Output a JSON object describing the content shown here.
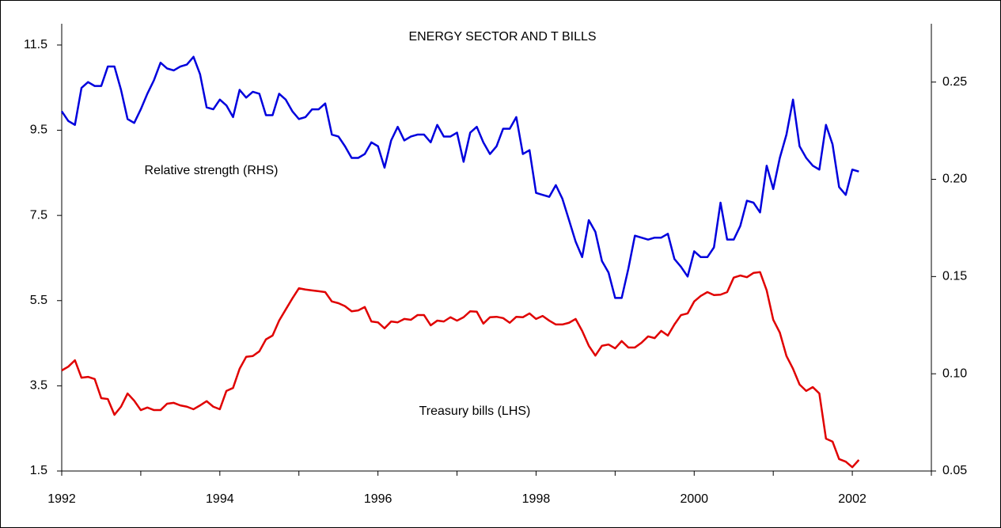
{
  "chart_data": {
    "type": "line",
    "title": "ENERGY SECTOR AND T BILLS",
    "x": [
      1992,
      1992.083,
      1992.167,
      1992.25,
      1992.333,
      1992.417,
      1992.5,
      1992.583,
      1992.667,
      1992.75,
      1992.833,
      1992.917,
      1993,
      1993.083,
      1993.167,
      1993.25,
      1993.333,
      1993.417,
      1993.5,
      1993.583,
      1993.667,
      1993.75,
      1993.833,
      1993.917,
      1994,
      1994.083,
      1994.167,
      1994.25,
      1994.333,
      1994.417,
      1994.5,
      1994.583,
      1994.667,
      1994.75,
      1994.833,
      1994.917,
      1995,
      1995.083,
      1995.167,
      1995.25,
      1995.333,
      1995.417,
      1995.5,
      1995.583,
      1995.667,
      1995.75,
      1995.833,
      1995.917,
      1996,
      1996.083,
      1996.167,
      1996.25,
      1996.333,
      1996.417,
      1996.5,
      1996.583,
      1996.667,
      1996.75,
      1996.833,
      1996.917,
      1997,
      1997.083,
      1997.167,
      1997.25,
      1997.333,
      1997.417,
      1997.5,
      1997.583,
      1997.667,
      1997.75,
      1997.833,
      1997.917,
      1998,
      1998.083,
      1998.167,
      1998.25,
      1998.333,
      1998.417,
      1998.5,
      1998.583,
      1998.667,
      1998.75,
      1998.833,
      1998.917,
      1999,
      1999.083,
      1999.167,
      1999.25,
      1999.333,
      1999.417,
      1999.5,
      1999.583,
      1999.667,
      1999.75,
      1999.833,
      1999.917,
      2000,
      2000.083,
      2000.167,
      2000.25,
      2000.333,
      2000.417,
      2000.5,
      2000.583,
      2000.667,
      2000.75,
      2000.833,
      2000.917,
      2001,
      2001.083,
      2001.167,
      2001.25,
      2001.333,
      2001.417,
      2001.5,
      2001.583,
      2001.667,
      2001.75,
      2001.833,
      2001.917,
      2002,
      2002.083
    ],
    "series": [
      {
        "name": "Relative strength (RHS)",
        "color": "#0000dd",
        "axis": "y2",
        "values": [
          0.235,
          0.23,
          0.228,
          0.247,
          0.25,
          0.248,
          0.248,
          0.258,
          0.258,
          0.246,
          0.231,
          0.229,
          0.236,
          0.244,
          0.251,
          0.26,
          0.257,
          0.256,
          0.258,
          0.259,
          0.263,
          0.254,
          0.237,
          0.236,
          0.241,
          0.238,
          0.232,
          0.246,
          0.242,
          0.245,
          0.244,
          0.233,
          0.233,
          0.244,
          0.241,
          0.235,
          0.231,
          0.232,
          0.236,
          0.236,
          0.239,
          0.223,
          0.222,
          0.217,
          0.211,
          0.211,
          0.213,
          0.219,
          0.217,
          0.206,
          0.22,
          0.227,
          0.22,
          0.222,
          0.223,
          0.223,
          0.219,
          0.228,
          0.222,
          0.222,
          0.224,
          0.209,
          0.224,
          0.227,
          0.219,
          0.213,
          0.217,
          0.226,
          0.226,
          0.232,
          0.213,
          0.215,
          0.193,
          0.192,
          0.191,
          0.197,
          0.19,
          0.179,
          0.168,
          0.16,
          0.179,
          0.173,
          0.158,
          0.152,
          0.139,
          0.139,
          0.154,
          0.171,
          0.17,
          0.169,
          0.17,
          0.17,
          0.172,
          0.159,
          0.155,
          0.15,
          0.163,
          0.16,
          0.16,
          0.165,
          0.188,
          0.169,
          0.169,
          0.176,
          0.189,
          0.188,
          0.183,
          0.207,
          0.195,
          0.211,
          0.223,
          0.241,
          0.217,
          0.211,
          0.207,
          0.205,
          0.228,
          0.218,
          0.196,
          0.192,
          0.205,
          0.204
        ]
      },
      {
        "name": "Treasury bills (LHS)",
        "color": "#e00000",
        "values": [
          3.86,
          3.95,
          4.1,
          3.69,
          3.71,
          3.66,
          3.21,
          3.19,
          2.82,
          3.01,
          3.32,
          3.15,
          2.93,
          2.99,
          2.93,
          2.93,
          3.08,
          3.1,
          3.04,
          3.01,
          2.95,
          3.04,
          3.14,
          3.01,
          2.95,
          3.38,
          3.45,
          3.9,
          4.18,
          4.2,
          4.31,
          4.59,
          4.68,
          5.03,
          5.29,
          5.55,
          5.79,
          5.76,
          5.74,
          5.72,
          5.7,
          5.48,
          5.44,
          5.37,
          5.25,
          5.27,
          5.35,
          5.01,
          4.99,
          4.85,
          5.01,
          4.99,
          5.07,
          5.05,
          5.16,
          5.16,
          4.92,
          5.03,
          5.01,
          5.11,
          5.03,
          5.11,
          5.25,
          5.24,
          4.96,
          5.11,
          5.12,
          5.09,
          4.98,
          5.12,
          5.11,
          5.2,
          5.07,
          5.14,
          5.03,
          4.94,
          4.94,
          4.98,
          5.07,
          4.79,
          4.44,
          4.21,
          4.44,
          4.47,
          4.38,
          4.55,
          4.4,
          4.4,
          4.51,
          4.66,
          4.62,
          4.79,
          4.68,
          4.94,
          5.16,
          5.2,
          5.48,
          5.61,
          5.7,
          5.63,
          5.64,
          5.7,
          6.04,
          6.09,
          6.05,
          6.15,
          6.17,
          5.74,
          5.05,
          4.75,
          4.2,
          3.9,
          3.53,
          3.38,
          3.47,
          3.32,
          2.26,
          2.19,
          1.78,
          1.72,
          1.59,
          1.76
        ]
      }
    ],
    "xlim": [
      1992,
      2003
    ],
    "xticks": [
      1992,
      1994,
      1996,
      1998,
      2000,
      2002
    ],
    "xminor_ticks": [
      1993,
      1995,
      1997,
      1999,
      2001,
      2003
    ],
    "ylim": [
      1.5,
      12
    ],
    "yticks": [
      1.5,
      3.5,
      5.5,
      7.5,
      9.5,
      11.5
    ],
    "y2lim": [
      0.05,
      0.28
    ],
    "y2ticks": [
      0.05,
      {
        "value": 0.1,
        "label": "0.10"
      },
      0.15,
      {
        "value": 0.2,
        "label": "0.20"
      },
      0.25
    ],
    "grid": false
  }
}
